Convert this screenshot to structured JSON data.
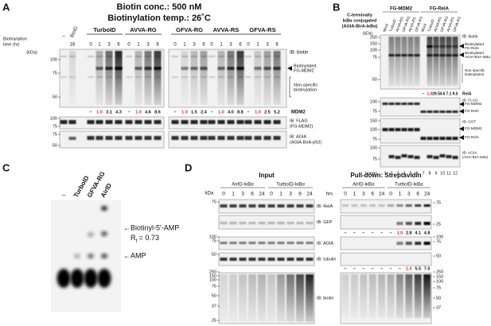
{
  "panel_a": {
    "label": "A",
    "title": [
      "Biotin conc.: 500 nM",
      "Biotinylation temp.: 26˚C"
    ],
    "control_lanes": [
      "–",
      "BioID"
    ],
    "groups": [
      "TurboID",
      "AVVA-RG",
      "GFVA-RG",
      "AVVA-RS",
      "GFVA-RS"
    ],
    "time_label": [
      "Biotinylation",
      "time (hr)"
    ],
    "bioid_time": "16",
    "times": [
      "0",
      "1",
      "3",
      "6"
    ],
    "kda": "(kDa)",
    "markers_biotin": [
      "100",
      "75",
      "50"
    ],
    "markers_flag": [
      "100",
      "75"
    ],
    "markers_agia": [
      "75",
      "50"
    ],
    "ib_biotin": "IB: biotin",
    "biotinylated": [
      "Biotinylated",
      "FG-MDM2"
    ],
    "nonspecific": [
      "Non-specific",
      "biotinylation"
    ],
    "quant_label": "MDM2",
    "quant": [
      [
        "–",
        "1.0",
        "3.1",
        "4.3"
      ],
      [
        "–",
        "1.0",
        "4.6",
        "8.6"
      ],
      [
        "–",
        "1.0",
        "1.5",
        "2.4"
      ],
      [
        "–",
        "1.0",
        "4.0",
        "8.8"
      ],
      [
        "–",
        "1.0",
        "2.5",
        "5.2"
      ]
    ],
    "ib_flag": [
      "IB: FLAG",
      "(FG-MDM2)"
    ],
    "ib_agia": [
      "IB: AGIA",
      "(AGIA-BirA-p53)"
    ]
  },
  "panel_b": {
    "label": "B",
    "construct": [
      "C-terminally",
      "IκBα conjugated",
      "(AGIA-BirA-IκBα)"
    ],
    "groups": [
      "FG-MDM2",
      "FG-RelA"
    ],
    "lanes": [
      "Mock",
      "TurboID",
      "AVVA-RG",
      "GFVA-RG",
      "AVVA-RS",
      "GFVA-RS"
    ],
    "kda": "(kDa)",
    "markers_biotin": [
      "250",
      "150",
      "100",
      "75",
      "50"
    ],
    "ib_biotin": "IB: biotin",
    "annot_rela": [
      "Biotinylated",
      "FG-RelA"
    ],
    "annot_bira": [
      "Biotinylated",
      "AGIA-BirA-IκBα"
    ],
    "nonspecific": [
      "Non-specific",
      "biotinylation"
    ],
    "quant": [
      "–",
      "1.0",
      "29.5",
      "4.6",
      "7.1",
      "9.0"
    ],
    "quant_label": "RelA",
    "ib_flag": [
      "IB: FLAG",
      "FG-MDM2",
      "FG-RelA"
    ],
    "markers_flag": [
      "100",
      "75"
    ],
    "ib_gst": [
      "IB: GST",
      "FG-MDM2",
      "FG-RelA"
    ],
    "markers_gst": [
      "150",
      "100",
      "75"
    ],
    "ib_agia": [
      "IB: AGIA",
      "(AGIA-BirA-IκBα)"
    ],
    "markers_agia": [
      "100",
      "75"
    ],
    "lanes_label": "Lanes",
    "lane_numbers": [
      "1",
      "2",
      "3",
      "4",
      "5",
      "6",
      "7",
      "8",
      "9",
      "10",
      "11",
      "12"
    ]
  },
  "panel_c": {
    "label": "C",
    "lanes": [
      "–",
      "TurboID",
      "GFVA-RG",
      "AirID"
    ],
    "spot_upper": "←Biotinyl-5'-AMP",
    "rf": [
      "R",
      "f",
      " = 0.73"
    ],
    "spot_lower": "←AMP"
  },
  "panel_d": {
    "label": "D",
    "sections": [
      "Input",
      "Pull-down: Streptavidin"
    ],
    "constructs": [
      "AirID-IκBα",
      "TurboID-IκBα"
    ],
    "kda": "kDa",
    "hrs_label": "hrs",
    "times": [
      "0",
      "1",
      "3",
      "6",
      "24"
    ],
    "blots": [
      "IB: RelA",
      "IB: GFP",
      "IB: AGIA",
      "IB: tubulin",
      "IB: biotin"
    ],
    "markers_input": [
      "75",
      "100",
      "75",
      "50",
      "250",
      "150",
      "100",
      "75",
      "50",
      "37",
      "25"
    ],
    "markers_pulldown": [
      "75",
      "25",
      "100",
      "75",
      "50",
      "250",
      "150",
      "100",
      "75",
      "50",
      "37"
    ],
    "quant_gfp": [
      "–",
      "–",
      "–",
      "–",
      "–",
      "–",
      "1.0",
      "2.8",
      "4.1",
      "4.8"
    ],
    "quant_agia": [
      "–",
      "–",
      "–",
      "–",
      "–",
      "–",
      "–",
      "1.0",
      "5.5",
      "7.0"
    ]
  }
}
